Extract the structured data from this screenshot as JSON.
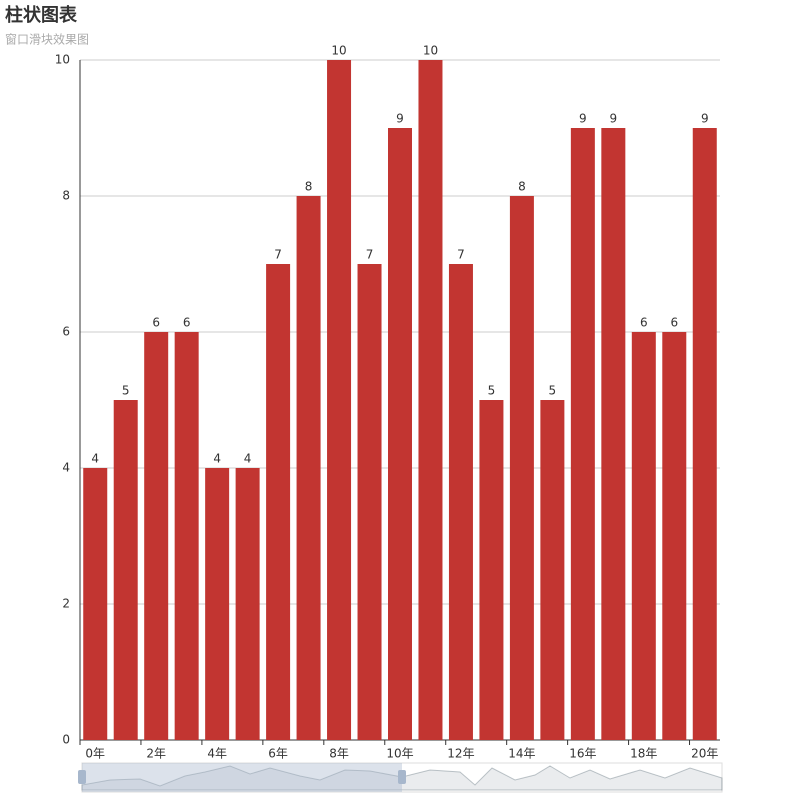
{
  "chart_data": {
    "type": "bar",
    "title": "柱状图表",
    "subtitle": "窗口滑块效果图",
    "categories": [
      "0年",
      null,
      "2年",
      null,
      "4年",
      null,
      "6年",
      null,
      "8年",
      null,
      "10年",
      null,
      "12年",
      null,
      "14年",
      null,
      "16年",
      null,
      "18年",
      null,
      "20年"
    ],
    "values": [
      4,
      5,
      6,
      6,
      4,
      4,
      7,
      8,
      10,
      7,
      9,
      10,
      7,
      5,
      8,
      5,
      9,
      9,
      6,
      6,
      9
    ],
    "color": "#c23531",
    "ylim": [
      0,
      10
    ],
    "yticks": [
      0,
      2,
      4,
      6,
      8,
      10
    ],
    "grid": true
  }
}
